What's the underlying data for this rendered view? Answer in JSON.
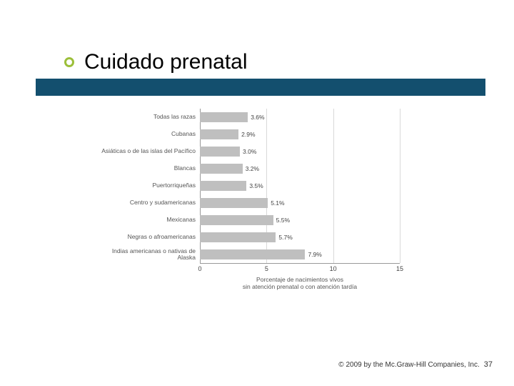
{
  "slide": {
    "title": "Cuidado prenatal",
    "bullet_color": "#9cbf3a",
    "underline_color": "#134f6e"
  },
  "chart": {
    "type": "bar",
    "orientation": "horizontal",
    "bar_color": "#bfbfbf",
    "background_color": "#ffffff",
    "grid_color": "#d9d9d9",
    "axis_color": "#999999",
    "label_color": "#555555",
    "label_fontsize": 8.5,
    "xmin": 0,
    "xmax": 15,
    "xtick_step": 5,
    "xticks": [
      0,
      5,
      10,
      15
    ],
    "xlabel_line1": "Porcentaje de nacimientos vivos",
    "xlabel_line2": "sin atención prenatal o con atención tardía",
    "categories": [
      {
        "label": "Todas las razas",
        "value": 3.6,
        "value_label": "3.6%"
      },
      {
        "label": "Cubanas",
        "value": 2.9,
        "value_label": "2.9%"
      },
      {
        "label": "Asiáticas o de las islas del Pacífico",
        "value": 3.0,
        "value_label": "3.0%"
      },
      {
        "label": "Blancas",
        "value": 3.2,
        "value_label": "3.2%"
      },
      {
        "label": "Puertorriqueñas",
        "value": 3.5,
        "value_label": "3.5%"
      },
      {
        "label": "Centro y sudamericanas",
        "value": 5.1,
        "value_label": "5.1%"
      },
      {
        "label": "Mexicanas",
        "value": 5.5,
        "value_label": "5.5%"
      },
      {
        "label": "Negras o afroamericanas",
        "value": 5.7,
        "value_label": "5.7%"
      },
      {
        "label": "Indias americanas o nativas de Alaska",
        "value": 7.9,
        "value_label": "7.9%"
      }
    ]
  },
  "footer": {
    "copyright": "© 2009 by the Mc.Graw-Hill Companies, Inc.",
    "page": "37"
  }
}
